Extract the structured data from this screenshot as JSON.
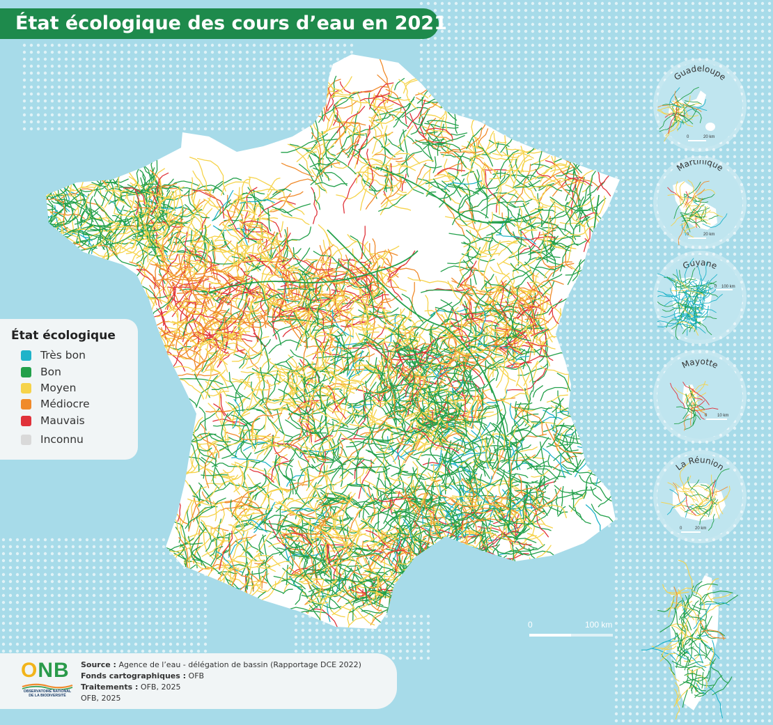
{
  "title": "État écologique des cours d’eau en 2021",
  "colors": {
    "sea": "#a7dbe9",
    "land": "#ffffff",
    "title_bg": "#1e8a4c",
    "tres_bon": "#1fb3c9",
    "bon": "#22a04a",
    "moyen": "#f6d34a",
    "mediocre": "#f08a2a",
    "mauvais": "#e0323a",
    "inconnu": "#d9d9d9"
  },
  "legend": {
    "title": "État écologique",
    "items": [
      {
        "label": "Très bon",
        "color": "#1fb3c9"
      },
      {
        "label": "Bon",
        "color": "#22a04a"
      },
      {
        "label": "Moyen",
        "color": "#f6d34a"
      },
      {
        "label": "Médiocre",
        "color": "#f08a2a"
      },
      {
        "label": "Mauvais",
        "color": "#e0323a"
      },
      {
        "label": "Inconnu",
        "color": "#d9d9d9"
      }
    ]
  },
  "insets": [
    {
      "name": "Guadeloupe",
      "scale_zero": "0",
      "scale_max": "20 km"
    },
    {
      "name": "Martinique",
      "scale_zero": "0",
      "scale_max": "20 km"
    },
    {
      "name": "Guyane",
      "scale_zero": "0",
      "scale_max": "100 km"
    },
    {
      "name": "Mayotte",
      "scale_zero": "0",
      "scale_max": "10 km"
    },
    {
      "name": "La Réunion",
      "scale_zero": "0",
      "scale_max": "20 km"
    }
  ],
  "scale_bar": {
    "zero": "0",
    "max": "100 km"
  },
  "source": {
    "source_label": "Source :",
    "source_text": "Agence de l’eau - délégation de bassin (Rapportage DCE 2022)",
    "fonds_label": "Fonds cartographiques :",
    "fonds_text": "OFB",
    "traitements_label": "Traitements :",
    "traitements_text": "OFB, 2025",
    "credit": "OFB, 2025"
  },
  "logo": {
    "letters": "ONB",
    "subtitle_line1": "OBSERVATOIRE NATIONAL",
    "subtitle_line2": "DE LA BIODIVERSITÉ"
  }
}
